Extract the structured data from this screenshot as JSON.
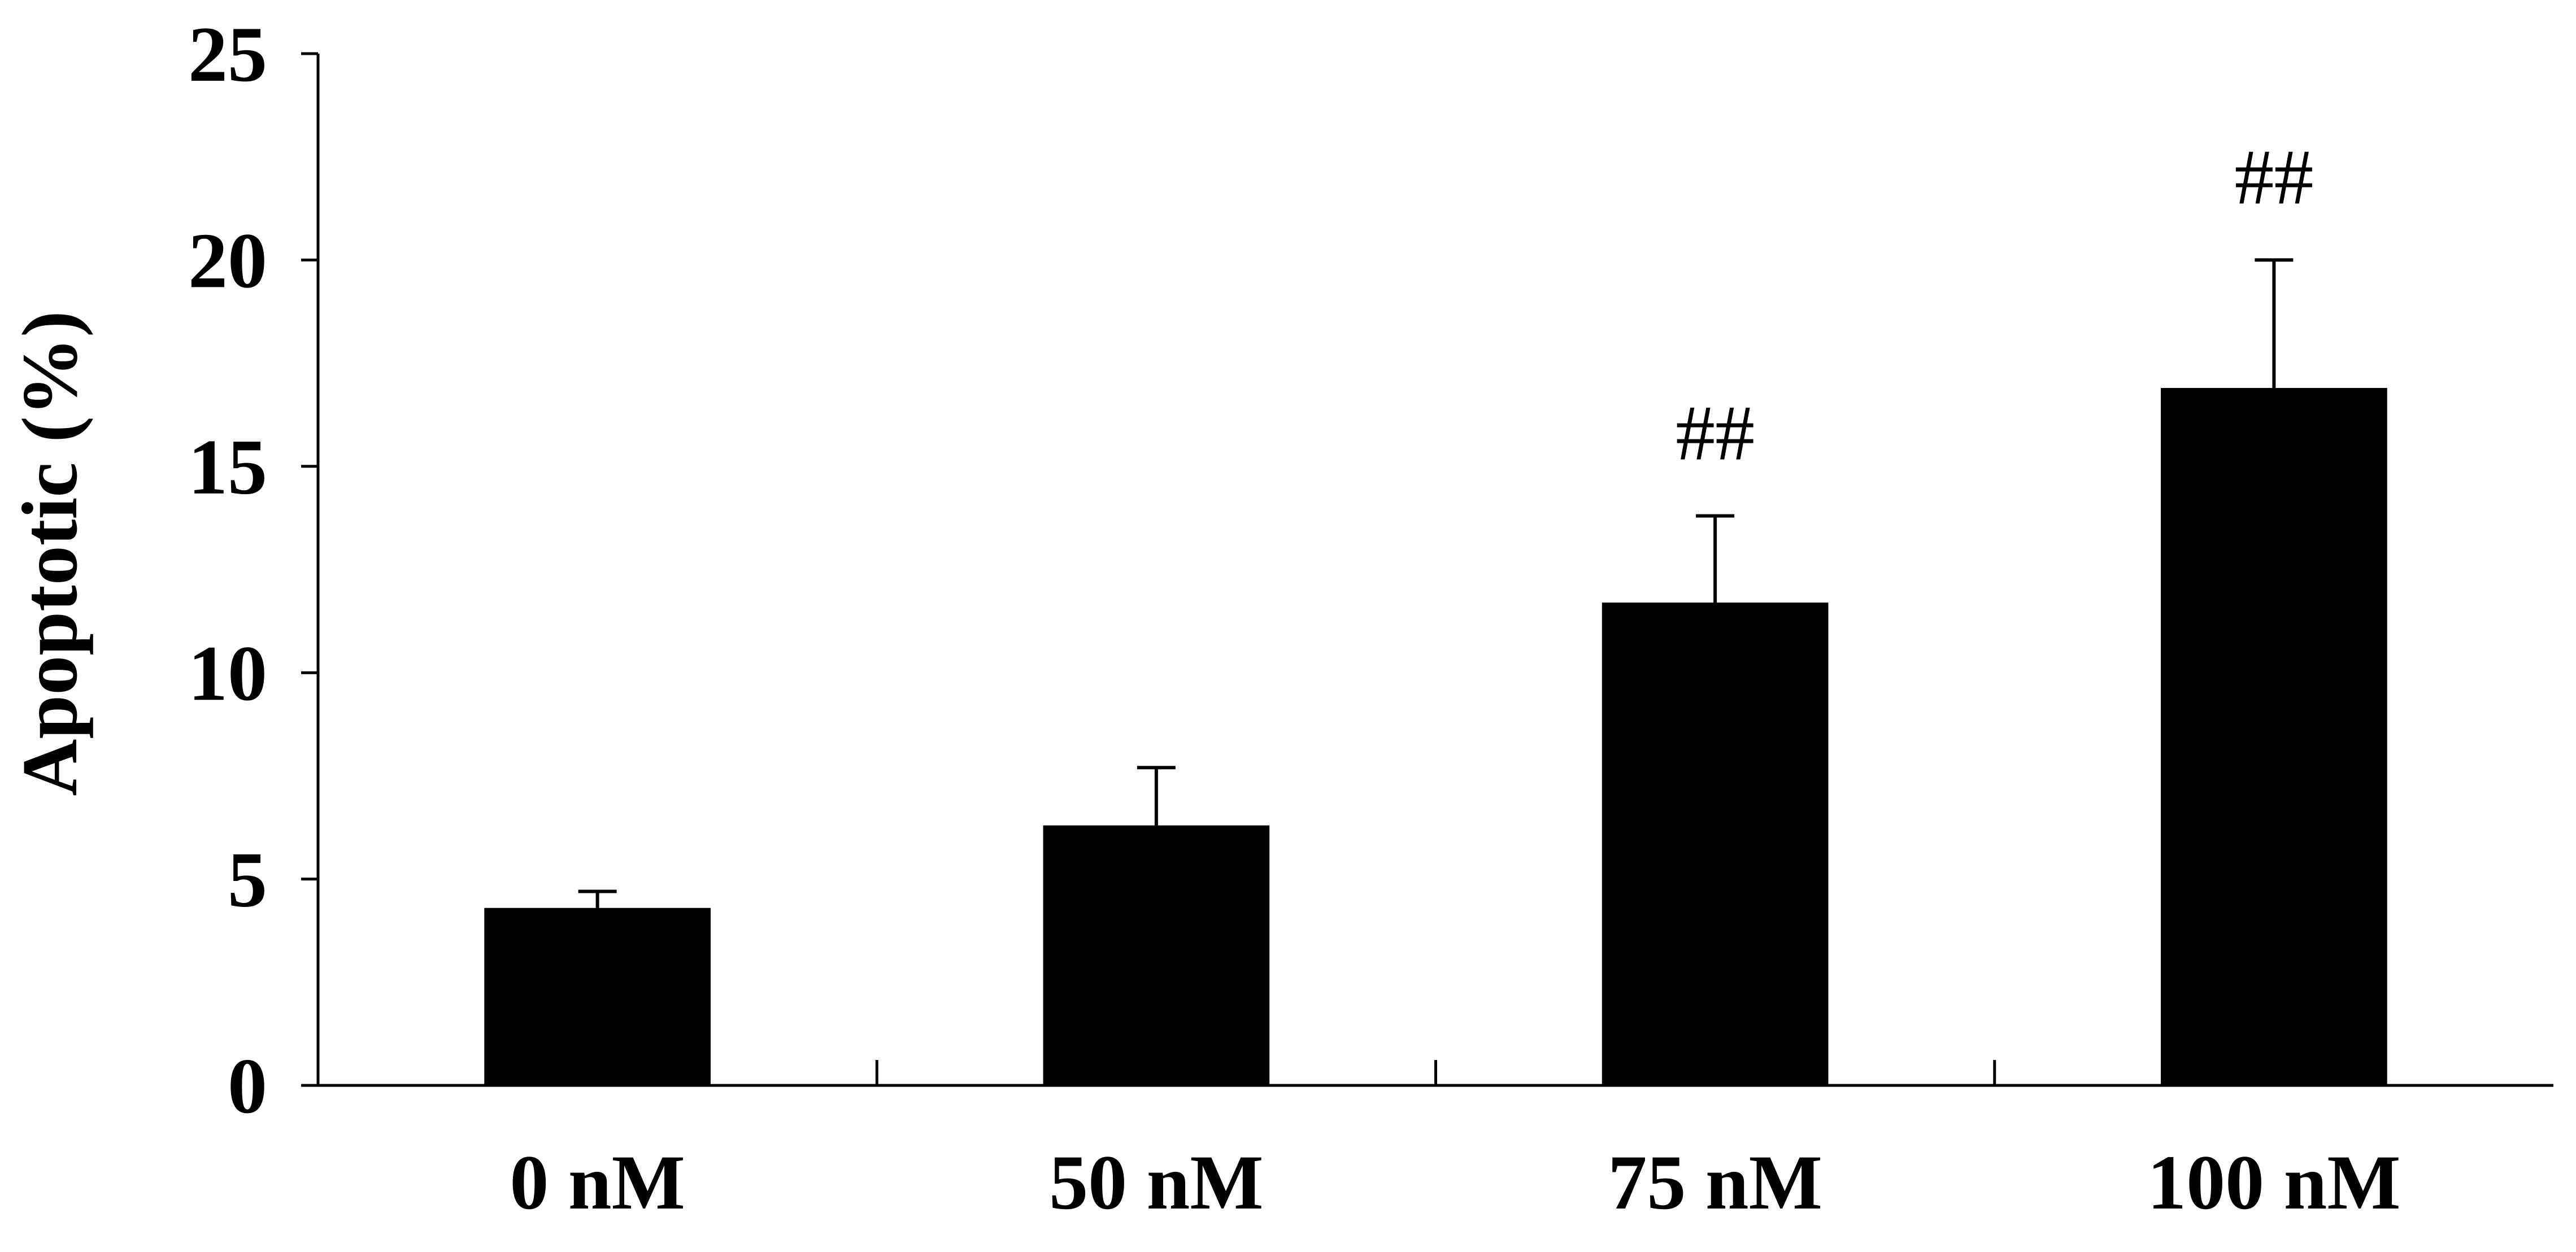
{
  "chart_data": {
    "type": "bar",
    "ylabel": "Apoptotic (%)",
    "xlabel": "",
    "ylim": [
      0,
      25
    ],
    "yticks": [
      "0",
      "5",
      "10",
      "15",
      "20",
      "25"
    ],
    "categories": [
      "0 nM",
      "50 nM",
      "75 nM",
      "100 nM"
    ],
    "values": [
      4.3,
      6.3,
      11.7,
      16.9
    ],
    "errors": [
      0.4,
      1.4,
      2.1,
      3.1
    ],
    "annotations": [
      "",
      "",
      "##",
      "##"
    ],
    "bar_color": "#000000",
    "grid": false,
    "legend": "none"
  }
}
